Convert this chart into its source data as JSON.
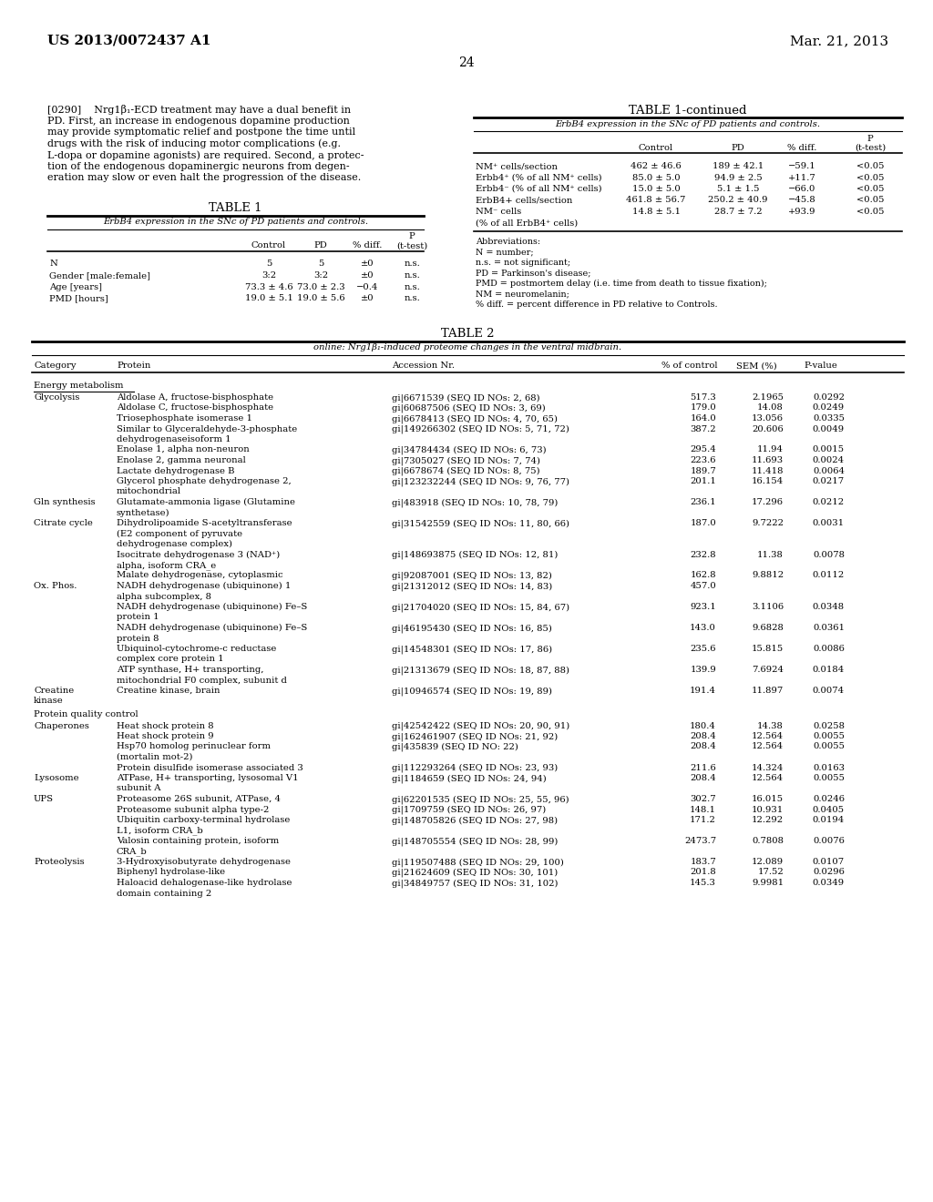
{
  "header_left": "US 2013/0072437 A1",
  "header_right": "Mar. 21, 2013",
  "page_number": "24",
  "para_lines": [
    "[0290]    Nrg1β₁-ECD treatment may have a dual benefit in",
    "PD. First, an increase in endogenous dopamine production",
    "may provide symptomatic relief and postpone the time until",
    "drugs with the risk of inducing motor complications (e.g.",
    "L-dopa or dopamine agonists) are required. Second, a protec-",
    "tion of the endogenous dopaminergic neurons from degen-",
    "eration may slow or even halt the progression of the disease."
  ],
  "table1_title": "TABLE 1",
  "table1_subtitle": "ErbB4 expression in the SNc of PD patients and controls.",
  "table1_rows": [
    [
      "N",
      "5",
      "5",
      "±0",
      "n.s."
    ],
    [
      "Gender [male:female]",
      "3:2",
      "3:2",
      "±0",
      "n.s."
    ],
    [
      "Age [years]",
      "73.3 ± 4.6",
      "73.0 ± 2.3",
      "−0.4",
      "n.s."
    ],
    [
      "PMD [hours]",
      "19.0 ± 5.1",
      "19.0 ± 5.6",
      "±0",
      "n.s."
    ]
  ],
  "table1c_title": "TABLE 1-continued",
  "table1c_subtitle": "ErbB4 expression in the SNc of PD patients and controls.",
  "table1c_rows": [
    [
      "NM⁺ cells/section",
      "462 ± 46.6",
      "189 ± 42.1",
      "−59.1",
      "<0.05"
    ],
    [
      "Erbb4⁺ (% of all NM⁺ cells)",
      "85.0 ± 5.0",
      "94.9 ± 2.5",
      "+11.7",
      "<0.05"
    ],
    [
      "Erbb4⁻ (% of all NM⁺ cells)",
      "15.0 ± 5.0",
      "5.1 ± 1.5",
      "−66.0",
      "<0.05"
    ],
    [
      "ErbB4+ cells/section",
      "461.8 ± 56.7",
      "250.2 ± 40.9",
      "−45.8",
      "<0.05"
    ],
    [
      "NM⁻ cells",
      "14.8 ± 5.1",
      "28.7 ± 7.2",
      "+93.9",
      "<0.05"
    ],
    [
      "(% of all ErbB4⁺ cells)",
      "",
      "",
      "",
      ""
    ]
  ],
  "table1c_abbrev_lines": [
    "Abbreviations:",
    "N = number;",
    "n.s. = not significant;",
    "PD = Parkinson's disease;",
    "PMD = postmortem delay (i.e. time from death to tissue fixation);",
    "NM = neuromelanin;",
    "% diff. = percent difference in PD relative to Controls."
  ],
  "table2_title": "TABLE 2",
  "table2_subtitle": "online: Nrg1β₁-induced proteome changes in the ventral midbrain.",
  "table2_rows": [
    {
      "cat": "Energy metabolism",
      "cat_underline": true,
      "sub": "",
      "protein": "",
      "accession": "",
      "pct": "",
      "sem": "",
      "pval": "",
      "blank_before": false
    },
    {
      "cat": "",
      "cat_underline": false,
      "sub": "Glycolysis",
      "protein": "Aldolase A, fructose-bisphosphate",
      "accession": "gi|6671539 (SEQ ID NOs: 2, 68)",
      "pct": "517.3",
      "sem": "2.1965",
      "pval": "0.0292",
      "blank_before": true
    },
    {
      "cat": "",
      "cat_underline": false,
      "sub": "",
      "protein": "Aldolase C, fructose-bisphosphate",
      "accession": "gi|60687506 (SEQ ID NOs: 3, 69)",
      "pct": "179.0",
      "sem": "14.08",
      "pval": "0.0249",
      "blank_before": false
    },
    {
      "cat": "",
      "cat_underline": false,
      "sub": "",
      "protein": "Triosephosphate isomerase 1",
      "accession": "gi|6678413 (SEQ ID NOs: 4, 70, 65)",
      "pct": "164.0",
      "sem": "13.056",
      "pval": "0.0335",
      "blank_before": false
    },
    {
      "cat": "",
      "cat_underline": false,
      "sub": "",
      "protein": "Similar to Glyceraldehyde-3-phosphate",
      "protein2": "dehydrogenaseisoform 1",
      "accession": "gi|149266302 (SEQ ID NOs: 5, 71, 72)",
      "pct": "387.2",
      "sem": "20.606",
      "pval": "0.0049",
      "blank_before": false
    },
    {
      "cat": "",
      "cat_underline": false,
      "sub": "",
      "protein": "Enolase 1, alpha non-neuron",
      "accession": "gi|34784434 (SEQ ID NOs: 6, 73)",
      "pct": "295.4",
      "sem": "11.94",
      "pval": "0.0015",
      "blank_before": false
    },
    {
      "cat": "",
      "cat_underline": false,
      "sub": "",
      "protein": "Enolase 2, gamma neuronal",
      "accession": "gi|7305027 (SEQ ID NOs: 7, 74)",
      "pct": "223.6",
      "sem": "11.693",
      "pval": "0.0024",
      "blank_before": false
    },
    {
      "cat": "",
      "cat_underline": false,
      "sub": "",
      "protein": "Lactate dehydrogenase B",
      "accession": "gi|6678674 (SEQ ID NOs: 8, 75)",
      "pct": "189.7",
      "sem": "11.418",
      "pval": "0.0064",
      "blank_before": false
    },
    {
      "cat": "",
      "cat_underline": false,
      "sub": "",
      "protein": "Glycerol phosphate dehydrogenase 2,",
      "protein2": "mitochondrial",
      "accession": "gi|123232244 (SEQ ID NOs: 9, 76, 77)",
      "pct": "201.1",
      "sem": "16.154",
      "pval": "0.0217",
      "blank_before": false
    },
    {
      "cat": "",
      "cat_underline": false,
      "sub": "Gln synthesis",
      "protein": "Glutamate-ammonia ligase (Glutamine",
      "protein2": "synthetase)",
      "accession": "gi|483918 (SEQ ID NOs: 10, 78, 79)",
      "pct": "236.1",
      "sem": "17.296",
      "pval": "0.0212",
      "blank_before": false
    },
    {
      "cat": "",
      "cat_underline": false,
      "sub": "Citrate cycle",
      "protein": "Dihydrolipoamide S-acetyltransferase",
      "protein2": "(E2 component of pyruvate",
      "protein3": "dehydrogenase complex)",
      "accession": "gi|31542559 (SEQ ID NOs: 11, 80, 66)",
      "pct": "187.0",
      "sem": "9.7222",
      "pval": "0.0031",
      "blank_before": false
    },
    {
      "cat": "",
      "cat_underline": false,
      "sub": "",
      "protein": "Isocitrate dehydrogenase 3 (NAD⁺)",
      "protein2": "alpha, isoform CRA_e",
      "accession": "gi|148693875 (SEQ ID NOs: 12, 81)",
      "pct": "232.8",
      "sem": "11.38",
      "pval": "0.0078",
      "blank_before": false
    },
    {
      "cat": "",
      "cat_underline": false,
      "sub": "",
      "protein": "Malate dehydrogenase, cytoplasmic",
      "accession": "gi|92087001 (SEQ ID NOs: 13, 82)",
      "pct": "162.8",
      "sem": "9.8812",
      "pval": "0.0112",
      "blank_before": false
    },
    {
      "cat": "",
      "cat_underline": false,
      "sub": "Ox. Phos.",
      "protein": "NADH dehydrogenase (ubiquinone) 1",
      "protein2": "alpha subcomplex, 8",
      "accession": "gi|21312012 (SEQ ID NOs: 14, 83)",
      "pct": "457.0",
      "sem": "",
      "pval": "",
      "blank_before": false
    },
    {
      "cat": "",
      "cat_underline": false,
      "sub": "",
      "protein": "NADH dehydrogenase (ubiquinone) Fe–S",
      "protein2": "protein 1",
      "accession": "gi|21704020 (SEQ ID NOs: 15, 84, 67)",
      "pct": "923.1",
      "sem": "3.1106",
      "pval": "0.0348",
      "blank_before": false
    },
    {
      "cat": "",
      "cat_underline": false,
      "sub": "",
      "protein": "NADH dehydrogenase (ubiquinone) Fe–S",
      "protein2": "protein 8",
      "accession": "gi|46195430 (SEQ ID NOs: 16, 85)",
      "pct": "143.0",
      "sem": "9.6828",
      "pval": "0.0361",
      "blank_before": false
    },
    {
      "cat": "",
      "cat_underline": false,
      "sub": "",
      "protein": "Ubiquinol-cytochrome-c reductase",
      "protein2": "complex core protein 1",
      "accession": "gi|14548301 (SEQ ID NOs: 17, 86)",
      "pct": "235.6",
      "sem": "15.815",
      "pval": "0.0086",
      "blank_before": false
    },
    {
      "cat": "",
      "cat_underline": false,
      "sub": "",
      "protein": "ATP synthase, H+ transporting,",
      "protein2": "mitochondrial F0 complex, subunit d",
      "accession": "gi|21313679 (SEQ ID NOs: 18, 87, 88)",
      "pct": "139.9",
      "sem": "7.6924",
      "pval": "0.0184",
      "blank_before": false
    },
    {
      "cat": "",
      "cat_underline": false,
      "sub": "Creatine",
      "sub2": "kinase",
      "protein": "Creatine kinase, brain",
      "accession": "gi|10946574 (SEQ ID NOs: 19, 89)",
      "pct": "191.4",
      "sem": "11.897",
      "pval": "0.0074",
      "blank_before": false
    },
    {
      "cat": "Protein quality control",
      "cat_underline": false,
      "sub": "",
      "protein": "",
      "accession": "",
      "pct": "",
      "sem": "",
      "pval": "",
      "blank_before": false
    },
    {
      "cat": "",
      "cat_underline": false,
      "sub": "Chaperones",
      "protein": "Heat shock protein 8",
      "accession": "gi|42542422 (SEQ ID NOs: 20, 90, 91)",
      "pct": "180.4",
      "sem": "14.38",
      "pval": "0.0258",
      "blank_before": false
    },
    {
      "cat": "",
      "cat_underline": false,
      "sub": "",
      "protein": "Heat shock protein 9",
      "accession": "gi|162461907 (SEQ ID NOs: 21, 92)",
      "pct": "208.4",
      "sem": "12.564",
      "pval": "0.0055",
      "blank_before": false
    },
    {
      "cat": "",
      "cat_underline": false,
      "sub": "",
      "protein": "Hsp70 homolog perinuclear form",
      "protein2": "(mortalin mot-2)",
      "accession": "gi|435839 (SEQ ID NO: 22)",
      "pct": "208.4",
      "sem": "12.564",
      "pval": "0.0055",
      "blank_before": false
    },
    {
      "cat": "",
      "cat_underline": false,
      "sub": "",
      "protein": "Protein disulfide isomerase associated 3",
      "accession": "gi|112293264 (SEQ ID NOs: 23, 93)",
      "pct": "211.6",
      "sem": "14.324",
      "pval": "0.0163",
      "blank_before": false
    },
    {
      "cat": "",
      "cat_underline": false,
      "sub": "Lysosome",
      "protein": "ATPase, H+ transporting, lysosomal V1",
      "protein2": "subunit A",
      "accession": "gi|1184659 (SEQ ID NOs: 24, 94)",
      "pct": "208.4",
      "sem": "12.564",
      "pval": "0.0055",
      "blank_before": false
    },
    {
      "cat": "",
      "cat_underline": false,
      "sub": "UPS",
      "protein": "Proteasome 26S subunit, ATPase, 4",
      "accession": "gi|62201535 (SEQ ID NOs: 25, 55, 96)",
      "pct": "302.7",
      "sem": "16.015",
      "pval": "0.0246",
      "blank_before": false
    },
    {
      "cat": "",
      "cat_underline": false,
      "sub": "",
      "protein": "Proteasome subunit alpha type-2",
      "accession": "gi|1709759 (SEQ ID NOs: 26, 97)",
      "pct": "148.1",
      "sem": "10.931",
      "pval": "0.0405",
      "blank_before": false
    },
    {
      "cat": "",
      "cat_underline": false,
      "sub": "",
      "protein": "Ubiquitin carboxy-terminal hydrolase",
      "protein2": "L1, isoform CRA_b",
      "accession": "gi|148705826 (SEQ ID NOs: 27, 98)",
      "pct": "171.2",
      "sem": "12.292",
      "pval": "0.0194",
      "blank_before": false
    },
    {
      "cat": "",
      "cat_underline": false,
      "sub": "",
      "protein": "Valosin containing protein, isoform",
      "protein2": "CRA_b",
      "accession": "gi|148705554 (SEQ ID NOs: 28, 99)",
      "pct": "2473.7",
      "sem": "0.7808",
      "pval": "0.0076",
      "blank_before": false
    },
    {
      "cat": "",
      "cat_underline": false,
      "sub": "Proteolysis",
      "protein": "3-Hydroxyisobutyrate dehydrogenase",
      "accession": "gi|119507488 (SEQ ID NOs: 29, 100)",
      "pct": "183.7",
      "sem": "12.089",
      "pval": "0.0107",
      "blank_before": false
    },
    {
      "cat": "",
      "cat_underline": false,
      "sub": "",
      "protein": "Biphenyl hydrolase-like",
      "accession": "gi|21624609 (SEQ ID NOs: 30, 101)",
      "pct": "201.8",
      "sem": "17.52",
      "pval": "0.0296",
      "blank_before": false
    },
    {
      "cat": "",
      "cat_underline": false,
      "sub": "",
      "protein": "Haloacid dehalogenase-like hydrolase",
      "protein2": "domain containing 2",
      "accession": "gi|34849757 (SEQ ID NOs: 31, 102)",
      "pct": "145.3",
      "sem": "9.9981",
      "pval": "0.0349",
      "blank_before": false
    }
  ]
}
